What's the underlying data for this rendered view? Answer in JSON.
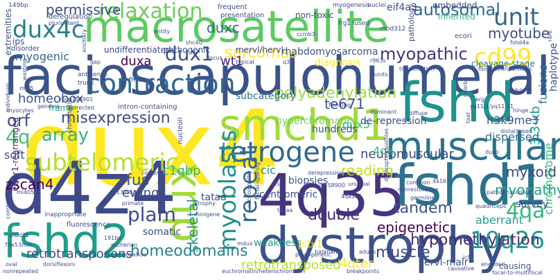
{
  "words": [
    {
      "text": "facioscapulohumeral",
      "color": "#3b528b"
    },
    {
      "text": "dux4",
      "color": "#fde725"
    },
    {
      "text": "macrosatellite",
      "color": "#5ec962"
    },
    {
      "text": "d4z4",
      "color": "#3e4a89"
    },
    {
      "text": "dystrophy",
      "color": "#3b528b"
    },
    {
      "text": "fshd",
      "color": "#21918c"
    },
    {
      "text": "fshd2",
      "color": "#1f9e89"
    },
    {
      "text": "4q35",
      "color": "#46337f"
    },
    {
      "text": "fshd1",
      "color": "#2c728e"
    },
    {
      "text": "smchd1",
      "color": "#a0da39"
    },
    {
      "text": "muscular",
      "color": "#2c728e"
    },
    {
      "text": "dux",
      "color": "#a0da39"
    },
    {
      "text": "contraction",
      "color": "#31688e"
    },
    {
      "text": "subtelomeric",
      "color": "#b5de2b"
    },
    {
      "text": "retrogene",
      "color": "#31688e"
    },
    {
      "text": "relaxation",
      "color": "#6ccd5a"
    },
    {
      "text": "dux4c",
      "color": "#26828e"
    },
    {
      "text": "myoblasts",
      "color": "#21918c"
    },
    {
      "text": "unit",
      "color": "#31688e"
    },
    {
      "text": "cd99",
      "color": "#fde725"
    },
    {
      "text": "10q26",
      "color": "#1f9e89"
    },
    {
      "text": "4qa",
      "color": "#35b779"
    },
    {
      "text": "dux1",
      "color": "#3b528b"
    },
    {
      "text": "polyadenylation",
      "color": "#a0da39"
    },
    {
      "text": "repeat",
      "color": "#31688e"
    },
    {
      "text": "epigenetic",
      "color": "#440154"
    },
    {
      "text": "hypomethylation",
      "color": "#472c7a"
    },
    {
      "text": "myopathic",
      "color": "#46337f"
    },
    {
      "text": "plam",
      "color": "#3e4a89"
    },
    {
      "text": "array",
      "color": "#35b779"
    },
    {
      "text": "autosomal",
      "color": "#31688e"
    },
    {
      "text": "myotube",
      "color": "#3e4a89"
    },
    {
      "text": "homeodomains",
      "color": "#26828e"
    },
    {
      "text": "4q",
      "color": "#4ac16d"
    },
    {
      "text": "misexpression",
      "color": "#3e4a89"
    },
    {
      "text": "neuromuscular",
      "color": "#3e4a89"
    },
    {
      "text": "orf",
      "color": "#3e4a89"
    },
    {
      "text": "sarcomas",
      "color": "#fde725"
    },
    {
      "text": "wt1",
      "color": "#482475"
    },
    {
      "text": "fus",
      "color": "#3e4a89"
    },
    {
      "text": "myopathy",
      "color": "#1fa187"
    },
    {
      "text": "retrotransposons",
      "color": "#3e4a89"
    },
    {
      "text": "retrotransposed",
      "color": "#b5de2b"
    },
    {
      "text": "zscan4",
      "color": "#440154"
    },
    {
      "text": "double",
      "color": "#472c7a"
    },
    {
      "text": "tandem",
      "color": "#3b528b"
    },
    {
      "text": "muscle",
      "color": "#3e4a89"
    },
    {
      "text": "ewing",
      "color": "#3e4a89"
    },
    {
      "text": "c1qbp",
      "color": "#35b779"
    },
    {
      "text": "myxoid",
      "color": "#3e4a89"
    },
    {
      "text": "reading",
      "color": "#c2df23"
    },
    {
      "text": "skeletal",
      "color": "#21918c"
    },
    {
      "text": "te671",
      "color": "#3b528b"
    },
    {
      "text": "duxc",
      "color": "#31688e"
    },
    {
      "text": "permissive",
      "color": "#3e4a89"
    },
    {
      "text": "homeobox",
      "color": "#3b528b"
    },
    {
      "text": "chromosome",
      "color": "#35b779"
    },
    {
      "text": "3.3-kb",
      "color": "#1f9e89"
    },
    {
      "text": "dux5",
      "color": "#35b779"
    },
    {
      "text": "h3k9me3",
      "color": "#3b528b"
    },
    {
      "text": "cic",
      "color": "#21918c"
    },
    {
      "text": "4qter",
      "color": "#fde725"
    },
    {
      "text": "4qa",
      "color": "#35b779"
    },
    {
      "text": "myogenic",
      "color": "#31688e"
    },
    {
      "text": "duxa",
      "color": "#440154"
    },
    {
      "text": "subcategory",
      "color": "#2c728e"
    },
    {
      "text": "soft",
      "color": "#3e4a89"
    },
    {
      "text": "ewsr1-rearranged",
      "color": "#482475"
    },
    {
      "text": "frame",
      "color": "#1fa187"
    },
    {
      "text": "diagnosis",
      "color": "#fde725"
    },
    {
      "text": "rhabdomyosarcoma",
      "color": "#3b528b"
    },
    {
      "text": "undifferentiated",
      "color": "#3e4a89"
    },
    {
      "text": "pathogenic",
      "color": "#3b528b"
    },
    {
      "text": "mervl/hervl",
      "color": "#3e4a89"
    },
    {
      "text": "hundreds",
      "color": "#3b528b"
    },
    {
      "text": "dispersed",
      "color": "#2c728e"
    },
    {
      "text": "survey",
      "color": "#3e4a89"
    },
    {
      "text": "aberrant",
      "color": "#1f9e89"
    },
    {
      "text": "weakness",
      "color": "#1f9e89"
    },
    {
      "text": "centromeric",
      "color": "#3e4a89"
    },
    {
      "text": "biopsies",
      "color": "#3b528b"
    },
    {
      "text": "somatic",
      "color": "#3e4a89"
    },
    {
      "text": "tataa",
      "color": "#3e4a89"
    },
    {
      "text": "hyperchromatic",
      "color": "#6ccd5a"
    },
    {
      "text": "de-repression",
      "color": "#3e4a89"
    },
    {
      "text": "fusions",
      "color": "#2c728e"
    },
    {
      "text": "haplotype",
      "color": "#3b528b"
    },
    {
      "text": "eif4a3",
      "color": "#3e4a89"
    },
    {
      "text": "embedded",
      "color": "#3e4a89"
    },
    {
      "text": "inherited",
      "color": "#35b779"
    },
    {
      "text": "non-toxic",
      "color": "#3e4a89"
    },
    {
      "text": "pitx1",
      "color": "#fde725"
    },
    {
      "text": "ervl-malr",
      "color": "#3b528b"
    },
    {
      "text": "causing",
      "color": "#3b528b"
    },
    {
      "text": "cleavage-stage",
      "color": "#2c728e"
    },
    {
      "text": "extremities",
      "color": "#3b528b"
    },
    {
      "text": "ips",
      "color": "#3e4a89"
    },
    {
      "text": "disorder",
      "color": "#3e4a89"
    },
    {
      "text": "frequent",
      "color": "#3e4a89"
    },
    {
      "text": "presentation",
      "color": "#3e4a89"
    },
    {
      "text": "deregulation",
      "color": "#3e4a89"
    },
    {
      "text": "pluripotent",
      "color": "#3e4a89"
    },
    {
      "text": "myogenesis",
      "color": "#3e4a89"
    },
    {
      "text": "nuclei",
      "color": "#3e4a89"
    },
    {
      "text": "mbd312",
      "color": "#3e4a89"
    },
    {
      "text": "pathology",
      "color": "#3e4a89"
    },
    {
      "text": "ecori",
      "color": "#3e4a89"
    },
    {
      "text": "fused",
      "color": "#3e4a89"
    },
    {
      "text": "frg1",
      "color": "#3e4a89"
    },
    {
      "text": "149bp",
      "color": "#3e4a89"
    },
    {
      "text": "entity",
      "color": "#3e4a89"
    },
    {
      "text": "ccmb3",
      "color": "#3e4a89"
    },
    {
      "text": "ancillary",
      "color": "#3e4a89"
    },
    {
      "text": "locus",
      "color": "#3e4a89"
    },
    {
      "text": "shc40",
      "color": "#3e4a89"
    },
    {
      "text": "gap",
      "color": "#3e4a89"
    },
    {
      "text": "typical",
      "color": "#3e4a89"
    },
    {
      "text": "q35",
      "color": "#3e4a89"
    },
    {
      "text": "r963s",
      "color": "#3e4a89"
    },
    {
      "text": "antisense",
      "color": "#3e4a89"
    },
    {
      "text": "trunk",
      "color": "#3e4a89"
    },
    {
      "text": "fhsd",
      "color": "#3e4a89"
    },
    {
      "text": "myf5",
      "color": "#3e4a89"
    },
    {
      "text": "wasting",
      "color": "#3e4a89"
    },
    {
      "text": "mim158901",
      "color": "#3e4a89"
    },
    {
      "text": "individuals",
      "color": "#3e4a89"
    },
    {
      "text": "myocytes",
      "color": "#3e4a89"
    },
    {
      "text": "genome",
      "color": "#3e4a89"
    },
    {
      "text": "corrected",
      "color": "#3e4a89"
    },
    {
      "text": "chromatin",
      "color": "#3e4a89"
    },
    {
      "text": "intron-containing",
      "color": "#3e4a89"
    },
    {
      "text": "nucleoli",
      "color": "#3e4a89"
    },
    {
      "text": "flanking",
      "color": "#3e4a89"
    },
    {
      "text": "dominant",
      "color": "#3e4a89"
    },
    {
      "text": "diffuse",
      "color": "#3e4a89"
    },
    {
      "text": "erg",
      "color": "#3e4a89"
    },
    {
      "text": "rna-seq",
      "color": "#3e4a89"
    },
    {
      "text": "yq11.1/yq11.21",
      "color": "#3e4a89"
    },
    {
      "text": "taat",
      "color": "#3e4a89"
    },
    {
      "text": "hinge",
      "color": "#3e4a89"
    },
    {
      "text": "distal",
      "color": "#3e4a89"
    },
    {
      "text": "linked",
      "color": "#3e4a89"
    },
    {
      "text": "dystrophinopathies",
      "color": "#3e4a89"
    },
    {
      "text": "copies",
      "color": "#3e4a89"
    },
    {
      "text": "primate",
      "color": "#3e4a89"
    },
    {
      "text": "137f6",
      "color": "#3e4a89"
    },
    {
      "text": "mi405",
      "color": "#3e4a89"
    },
    {
      "text": "combing",
      "color": "#3e4a89"
    },
    {
      "text": "fluorescence",
      "color": "#3e4a89"
    },
    {
      "text": "inappropriate",
      "color": "#3e4a89"
    },
    {
      "text": "minigene",
      "color": "#3e4a89"
    },
    {
      "text": "atrophy",
      "color": "#3e4a89"
    },
    {
      "text": "pathophysiology",
      "color": "#3e4a89"
    },
    {
      "text": "mbd31",
      "color": "#3e4a89"
    },
    {
      "text": "70x53mm",
      "color": "#3e4a89"
    },
    {
      "text": "191bp",
      "color": "#3e4a89"
    },
    {
      "text": "eutherian",
      "color": "#3e4a89"
    },
    {
      "text": "bonafide",
      "color": "#3e4a89"
    },
    {
      "text": "phylogenetic",
      "color": "#3e4a89"
    },
    {
      "text": "hallmark",
      "color": "#3e4a89"
    },
    {
      "text": "adults",
      "color": "#3e4a89"
    },
    {
      "text": "icf1",
      "color": "#3e4a89"
    },
    {
      "text": "encoded",
      "color": "#3e4a89"
    },
    {
      "text": "euchromatin/heterochromatin",
      "color": "#3e4a89"
    },
    {
      "text": "breakpoints",
      "color": "#3e4a89"
    },
    {
      "text": "focal-to-multifocal",
      "color": "#3e4a89"
    },
    {
      "text": "oval",
      "color": "#3e4a89"
    },
    {
      "text": "nonrepeated",
      "color": "#3e4a89"
    },
    {
      "text": "dorsiflexors",
      "color": "#3e4a89"
    },
    {
      "text": "4qa161",
      "color": "#3e4a89"
    },
    {
      "text": "derepression",
      "color": "#3e4a89"
    },
    {
      "text": "unusual",
      "color": "#3e4a89"
    },
    {
      "text": "nonrestorative",
      "color": "#3e4a89"
    },
    {
      "text": "common",
      "color": "#3e4a89"
    },
    {
      "text": "quadriceps",
      "color": "#3e4a89"
    },
    {
      "text": "germline",
      "color": "#3e4a89"
    },
    {
      "text": "causative",
      "color": "#3e4a89"
    },
    {
      "text": "facial-sparing",
      "color": "#3e4a89"
    },
    {
      "text": "vacuolopathy",
      "color": "#3e4a89"
    },
    {
      "text": "mdux",
      "color": "#3e4a89"
    },
    {
      "text": "visit",
      "color": "#3e4a89"
    },
    {
      "text": "fshd4a",
      "color": "#3e4a89"
    },
    {
      "text": "nearby",
      "color": "#3e4a89"
    },
    {
      "text": "fibronectinparticles",
      "color": "#3e4a89"
    },
    {
      "text": "transcription",
      "color": "#3e4a89"
    },
    {
      "text": "units",
      "color": "#3e4a89"
    },
    {
      "text": "duxb",
      "color": "#3e4a89"
    },
    {
      "text": "rare",
      "color": "#3e4a89"
    },
    {
      "text": "scf1S8900",
      "color": "#3e4a89"
    },
    {
      "text": "4a161",
      "color": "#3e4a89"
    },
    {
      "text": "tacaa",
      "color": "#3e4a89"
    },
    {
      "text": "dux3",
      "color": "#3e4a89"
    }
  ]
}
